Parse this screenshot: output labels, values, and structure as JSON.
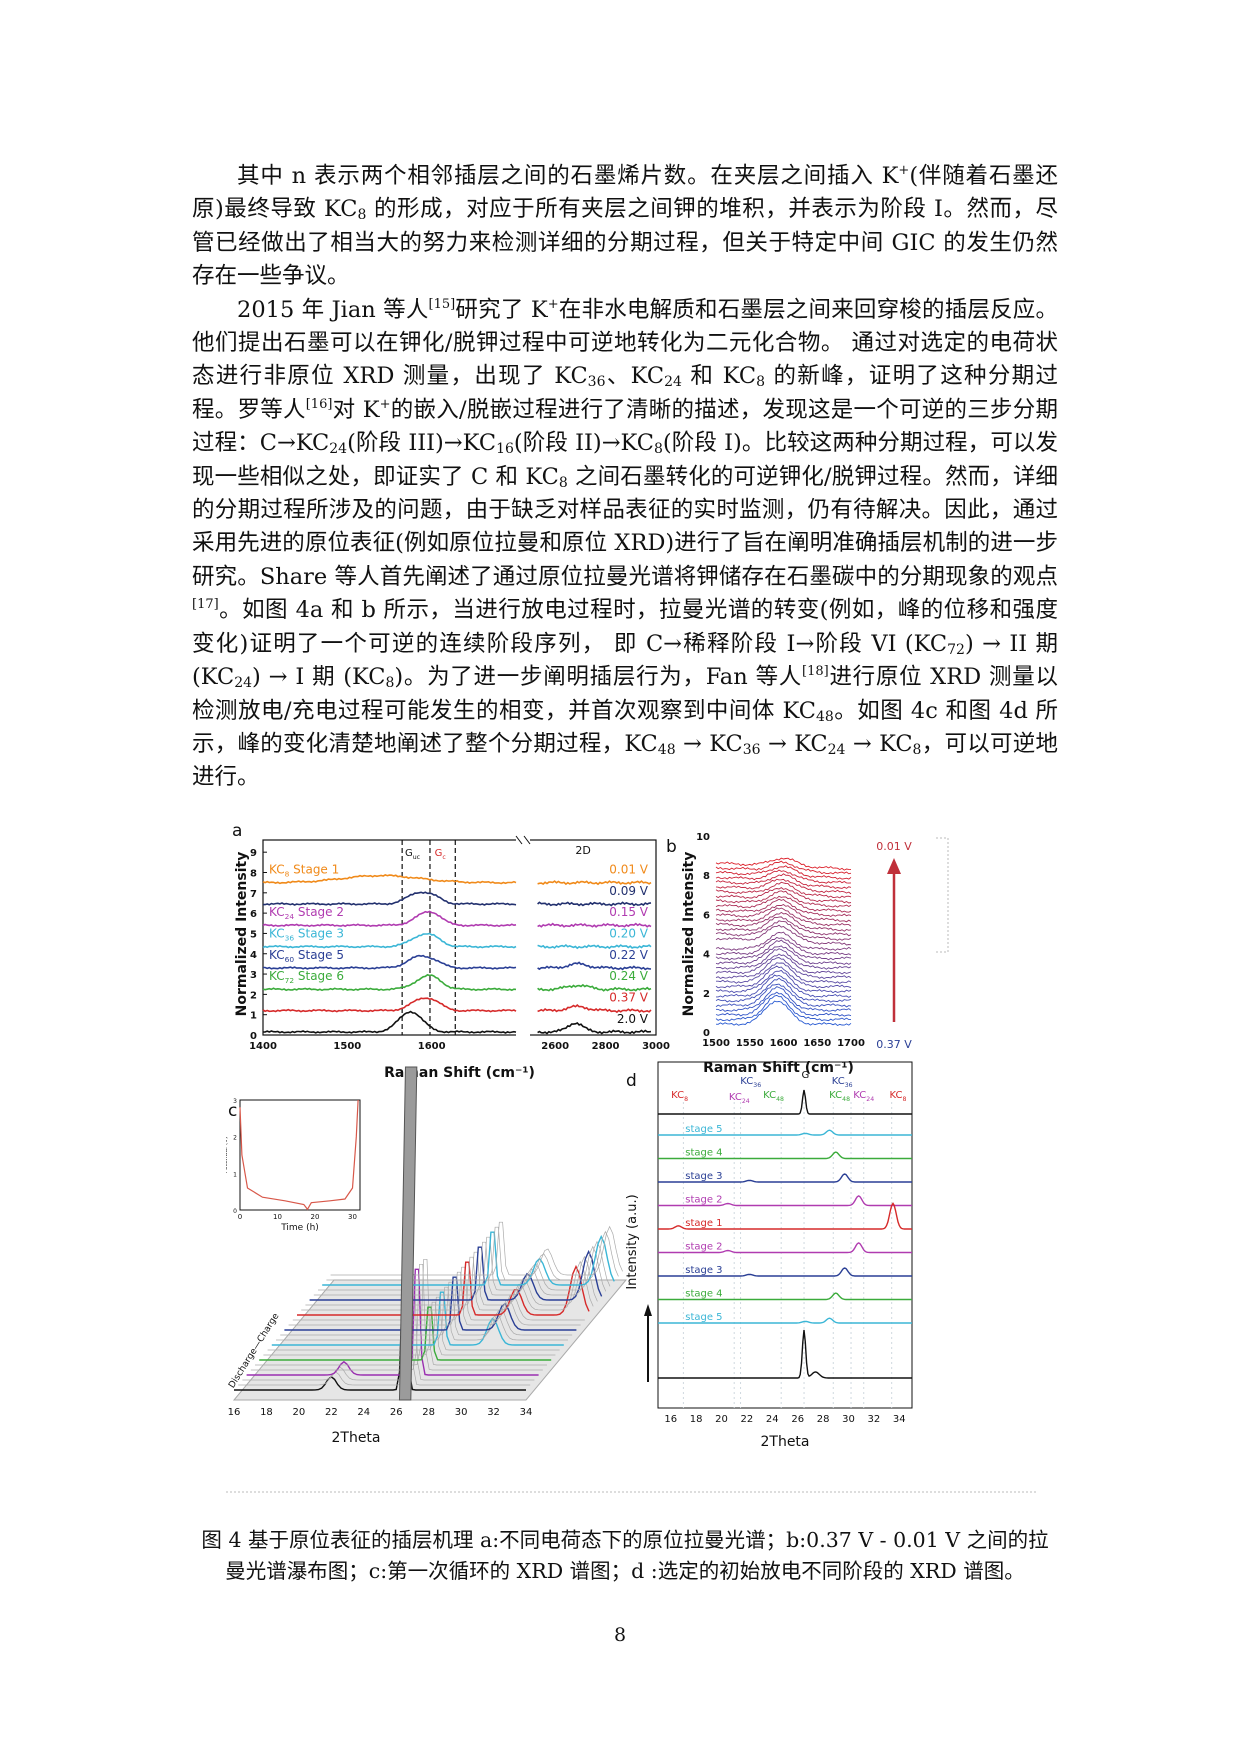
{
  "paragraphs": [
    [
      {
        "t": "其中 n 表示两个相邻插层之间的石墨烯片数。在夹层之间插入 K"
      },
      {
        "sup": "+"
      },
      {
        "t": "(伴随着石墨还原)最终导致 KC"
      },
      {
        "sub": "8"
      },
      {
        "t": " 的形成，对应于所有夹层之间钾的堆积，并表示为阶段 I。然而，尽管已经做出了相当大的努力来检测详细的分期过程，但关于特定中间 GIC 的发生仍然存在一些争议。"
      }
    ],
    [
      {
        "t": "2015 年 Jian 等人"
      },
      {
        "sup": "[15]"
      },
      {
        "t": "研究了 K"
      },
      {
        "sup": "+"
      },
      {
        "t": "在非水电解质和石墨层之间来回穿梭的插层反应。他们提出石墨可以在钾化/脱钾过程中可逆地转化为二元化合物。 通过对选定的电荷状态进行非原位 XRD 测量，出现了 KC"
      },
      {
        "sub": "36"
      },
      {
        "t": "、KC"
      },
      {
        "sub": "24"
      },
      {
        "t": " 和 KC"
      },
      {
        "sub": "8"
      },
      {
        "t": " 的新峰，证明了这种分期过程。罗等人"
      },
      {
        "sup": "[16]"
      },
      {
        "t": "对 K"
      },
      {
        "sup": "+"
      },
      {
        "t": "的嵌入/脱嵌过程进行了清晰的描述，发现这是一个可逆的三步分期过程：C→KC"
      },
      {
        "sub": "24"
      },
      {
        "t": "(阶段 III)→KC"
      },
      {
        "sub": "16"
      },
      {
        "t": "(阶段 II)→KC"
      },
      {
        "sub": "8"
      },
      {
        "t": "(阶段 I)。比较这两种分期过程，可以发现一些相似之处，即证实了 C 和 KC"
      },
      {
        "sub": "8"
      },
      {
        "t": " 之间石墨转化的可逆钾化/脱钾过程。然而，详细的分期过程所涉及的问题，由于缺乏对样品表征的实时监测，仍有待解决。因此，通过采用先进的原位表征(例如原位拉曼和原位 XRD)进行了旨在阐明准确插层机制的进一步研究。Share 等人首先阐述了通过原位拉曼光谱将钾储存在石墨碳中的分期现象的观点"
      },
      {
        "sup": "[17]"
      },
      {
        "t": "。如图 4a 和 b 所示，当进行放电过程时，拉曼光谱的转变(例如，峰的位移和强度变化)证明了一个可逆的连续阶段序列， 即 C→稀释阶段 I→阶段 VI (KC"
      },
      {
        "sub": "72"
      },
      {
        "t": ") → II 期 (KC"
      },
      {
        "sub": "24"
      },
      {
        "t": ") → I 期 (KC"
      },
      {
        "sub": "8"
      },
      {
        "t": ")。为了进一步阐明插层行为，Fan 等人"
      },
      {
        "sup": "[18]"
      },
      {
        "t": "进行原位 XRD 测量以检测放电/充电过程可能发生的相变，并首次观察到中间体 KC"
      },
      {
        "sub": "48"
      },
      {
        "t": "。如图 4c 和图 4d 所示，峰的变化清楚地阐述了整个分期过程，KC"
      },
      {
        "sub": "48"
      },
      {
        "t": " → KC"
      },
      {
        "sub": "36"
      },
      {
        "t": " → KC"
      },
      {
        "sub": "24"
      },
      {
        "t": " → KC"
      },
      {
        "sub": "8"
      },
      {
        "t": "，可以可逆地进行。"
      }
    ]
  ],
  "figure": {
    "panel_a": {
      "label": "a",
      "ylabel": "Normalized Intensity",
      "xlabel": "Raman Shift (cm⁻¹)",
      "yticks": [
        "0",
        "1",
        "2",
        "3",
        "4",
        "5",
        "6",
        "7",
        "8",
        "9"
      ],
      "xticks_left": [
        "1400",
        "1500",
        "1600"
      ],
      "xticks_right": [
        "2600",
        "2800",
        "3000"
      ],
      "band_2d": "2D",
      "band_guc": "G",
      "band_guc_sub": "uc",
      "band_gc": "G",
      "band_gc_sub": "c",
      "spectra": [
        {
          "voltage": "2.0 V",
          "color": "#111111",
          "name": ""
        },
        {
          "voltage": "0.37 V",
          "color": "#d62a2a",
          "name": ""
        },
        {
          "voltage": "0.24 V",
          "color": "#3bab3b",
          "name": "KC",
          "name_sub": "72",
          "name_rest": " Stage 6"
        },
        {
          "voltage": "0.22 V",
          "color": "#2a3f95",
          "name": "KC",
          "name_sub": "60",
          "name_rest": " Stage 5"
        },
        {
          "voltage": "0.20 V",
          "color": "#3bb6d6",
          "name": "KC",
          "name_sub": "36",
          "name_rest": " Stage 3"
        },
        {
          "voltage": "0.15 V",
          "color": "#b03bb0",
          "name": "KC",
          "name_sub": "24",
          "name_rest": " Stage 2"
        },
        {
          "voltage": "0.09 V",
          "color": "#22306e",
          "name": ""
        },
        {
          "voltage": "0.01 V",
          "color": "#f08a1a",
          "name": "KC",
          "name_sub": "8",
          "name_rest": " Stage 1"
        }
      ]
    },
    "panel_b": {
      "label": "b",
      "ylabel": "Normalized Intensity",
      "xlabel": "Raman Shift (cm⁻¹)",
      "yticks": [
        "0",
        "2",
        "4",
        "6",
        "8",
        "10"
      ],
      "xticks": [
        "1500",
        "1550",
        "1600",
        "1650",
        "1700"
      ],
      "top_voltage": "0.01 V",
      "bottom_voltage": "0.37 V"
    },
    "panel_c": {
      "label": "c",
      "xlabel": "2Theta",
      "xticks": [
        "16",
        "18",
        "20",
        "22",
        "24",
        "26",
        "28",
        "30",
        "32",
        "34"
      ],
      "inset_ylabel": "Potential (V)",
      "inset_xlabel": "Time (h)",
      "inset_yticks": [
        "0",
        "1",
        "2",
        "3"
      ],
      "inset_xticks": [
        "0",
        "10",
        "20",
        "30"
      ],
      "axis_label": "Discharge—Charge"
    },
    "panel_d": {
      "label": "d",
      "ylabel": "Intensity (a.u.)",
      "xlabel": "2Theta",
      "xticks": [
        "16",
        "18",
        "20",
        "22",
        "24",
        "26",
        "28",
        "30",
        "32",
        "34"
      ],
      "peak_labels": [
        {
          "text": "KC",
          "sub": "8",
          "color": "#d62a2a"
        },
        {
          "text": "KC",
          "sub": "24",
          "color": "#b03bb0"
        },
        {
          "text": "KC",
          "sub": "36",
          "color": "#2a3f95"
        },
        {
          "text": "KC",
          "sub": "48",
          "color": "#3bab3b"
        },
        {
          "text": "G",
          "sub": "",
          "color": "#111111"
        },
        {
          "text": "KC",
          "sub": "36",
          "color": "#2a3f95"
        },
        {
          "text": "KC",
          "sub": "48",
          "color": "#3bab3b"
        },
        {
          "text": "KC",
          "sub": "24",
          "color": "#b03bb0"
        },
        {
          "text": "KC",
          "sub": "8",
          "color": "#d62a2a"
        }
      ],
      "stages": [
        {
          "label": "stage 5",
          "color": "#3bb6d6"
        },
        {
          "label": "stage 4",
          "color": "#3bab3b"
        },
        {
          "label": "stage 3",
          "color": "#2a3f95"
        },
        {
          "label": "stage 2",
          "color": "#b03bb0"
        },
        {
          "label": "stage 1",
          "color": "#d62a2a"
        },
        {
          "label": "stage 2",
          "color": "#b03bb0"
        },
        {
          "label": "stage 3",
          "color": "#2a3f95"
        },
        {
          "label": "stage 4",
          "color": "#3bab3b"
        },
        {
          "label": "stage 5",
          "color": "#3bb6d6"
        }
      ]
    }
  },
  "caption": "图 4 基于原位表征的插层机理 a:不同电荷态下的原位拉曼光谱；b:0.37 V - 0.01 V 之间的拉曼光谱瀑布图；c:第一次循环的 XRD 谱图；d :选定的初始放电不同阶段的 XRD 谱图。",
  "page_number": "8"
}
